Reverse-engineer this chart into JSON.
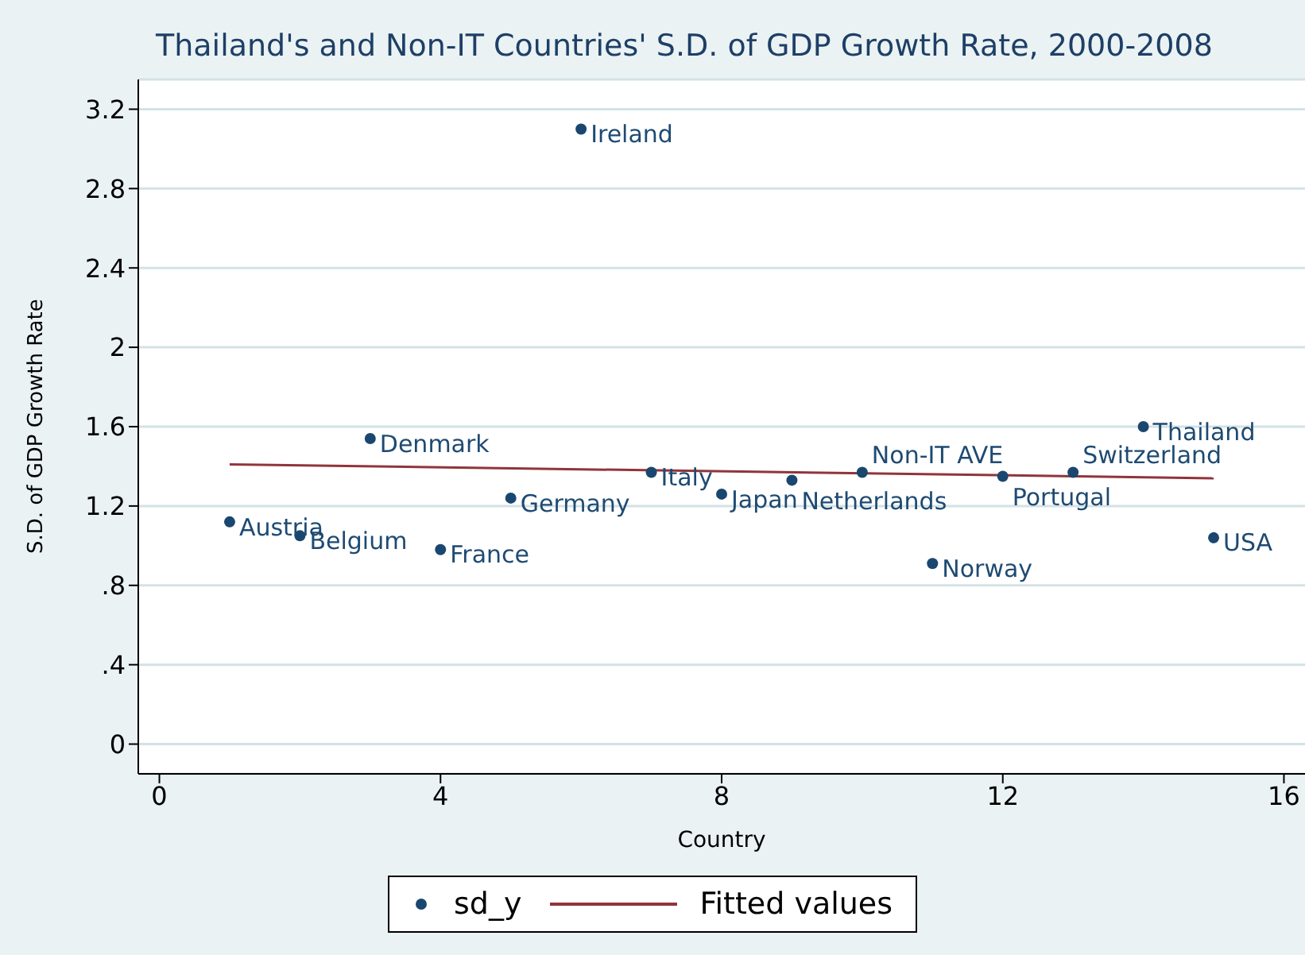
{
  "chart_data": {
    "type": "scatter",
    "title": "Thailand's and Non-IT Countries' S.D. of GDP Growth Rate, 2000-2008",
    "xlabel": "Country",
    "ylabel": "S.D. of GDP Growth Rate",
    "xlim": [
      -0.3,
      16.3
    ],
    "ylim": [
      -0.15,
      3.35
    ],
    "xticks": [
      0,
      4,
      8,
      12,
      16
    ],
    "yticks": [
      0,
      {
        "value": 0.4,
        "label": ".4"
      },
      {
        "value": 0.8,
        "label": ".8"
      },
      1.2,
      1.6,
      2,
      2.4,
      2.8,
      3.2
    ],
    "grid": "y",
    "legend": "bottom",
    "marker": "circle",
    "series": [
      {
        "name": "sd_y",
        "type": "scatter",
        "color": "#1a476f",
        "x": [
          1,
          2,
          3,
          4,
          5,
          6,
          7,
          8,
          9,
          10,
          11,
          12,
          13,
          14,
          15
        ],
        "values": [
          1.12,
          1.05,
          1.54,
          0.98,
          1.24,
          3.1,
          1.37,
          1.26,
          1.33,
          1.37,
          0.91,
          1.35,
          1.37,
          1.6,
          1.04
        ]
      },
      {
        "name": "Fitted values",
        "type": "line",
        "marker": "none",
        "color": "#90353b",
        "x": [
          1,
          15
        ],
        "values": [
          1.41,
          1.34
        ]
      }
    ],
    "annotations": [
      {
        "text": "Austria",
        "x": 1,
        "y": 1.12
      },
      {
        "text": "Belgium",
        "x": 2,
        "y": 1.05
      },
      {
        "text": "Denmark",
        "x": 3,
        "y": 1.54
      },
      {
        "text": "France",
        "x": 4,
        "y": 0.98
      },
      {
        "text": "Germany",
        "x": 5,
        "y": 1.24
      },
      {
        "text": "Ireland",
        "x": 6,
        "y": 3.1
      },
      {
        "text": "Italy",
        "x": 7,
        "y": 1.37
      },
      {
        "text": "Japan",
        "x": 8,
        "y": 1.26
      },
      {
        "text": "Netherlands",
        "x": 9,
        "y": 1.33
      },
      {
        "text": "Non-IT AVE",
        "x": 10,
        "y": 1.37
      },
      {
        "text": "Norway",
        "x": 11,
        "y": 0.91
      },
      {
        "text": "Portugal",
        "x": 12,
        "y": 1.35
      },
      {
        "text": "Switzerland",
        "x": 13,
        "y": 1.37
      },
      {
        "text": "Thailand",
        "x": 14,
        "y": 1.6
      },
      {
        "text": "USA",
        "x": 15,
        "y": 1.04
      }
    ]
  }
}
